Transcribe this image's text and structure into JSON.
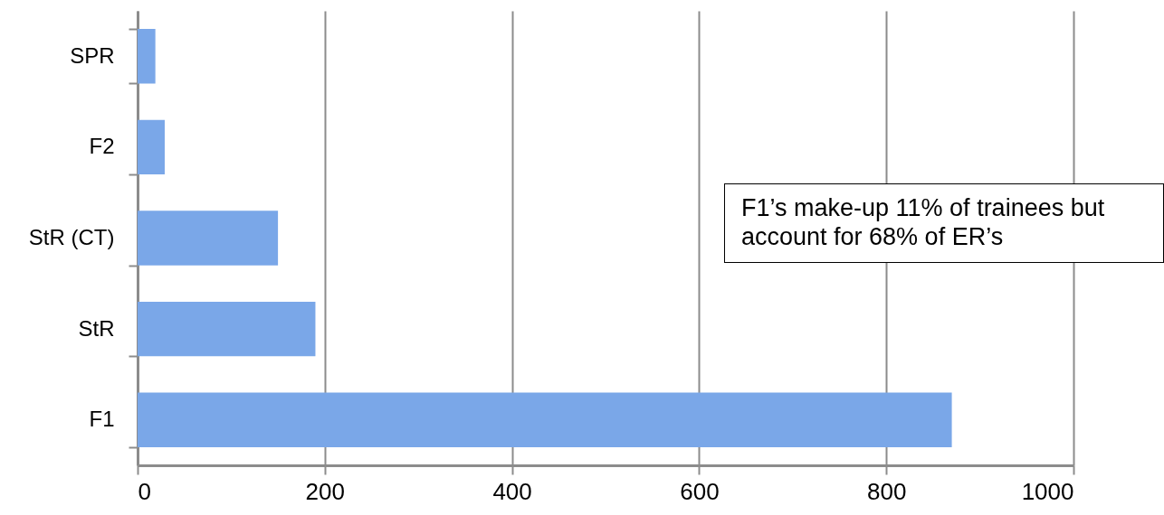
{
  "chart_data": {
    "type": "bar",
    "orientation": "horizontal",
    "categories": [
      "SPR",
      "F2",
      "StR (CT)",
      "StR",
      "F1"
    ],
    "values": [
      19,
      29,
      150,
      190,
      870
    ],
    "color": "#7aa7e8",
    "xlim": [
      0,
      1000
    ],
    "xticks": [
      0,
      200,
      400,
      600,
      800,
      1000
    ],
    "grid": "x",
    "annotations": [
      "F1’s make-up 11% of trainees but account for 68% of ER’s"
    ]
  }
}
